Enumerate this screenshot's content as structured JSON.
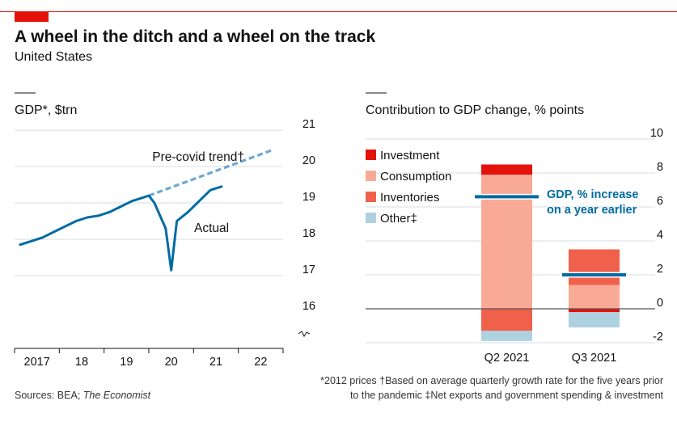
{
  "header": {
    "title": "A wheel in the ditch and a wheel on the track",
    "subtitle": "United States"
  },
  "footnotes": {
    "line1": "*2012 prices †Based on average quarterly growth rate for the five years prior",
    "line2": "to the pandemic ‡Net exports and government spending & investment",
    "sources_label": "Sources: BEA; ",
    "sources_italic": "The Economist"
  },
  "colors": {
    "accent": "#e3120b",
    "actual_line": "#006ba2",
    "trend_line": "#3d89c3",
    "investment": "#e3120b",
    "consumption": "#f9aa96",
    "inventories": "#f0614c",
    "other": "#aed1e0",
    "gdp_marker": "#006ba2"
  },
  "chart_data": [
    {
      "type": "line",
      "title": "GDP*, $trn",
      "y_ticks": [
        16,
        17,
        18,
        19,
        20,
        21
      ],
      "ylim": [
        16,
        21
      ],
      "y_axis_break": true,
      "x_tick_labels": [
        "2017",
        "18",
        "19",
        "20",
        "21",
        "22"
      ],
      "x_tick_values": [
        2017,
        2018,
        2019,
        2020,
        2021,
        2022
      ],
      "xlim": [
        2016.5,
        2022.5
      ],
      "grid": true,
      "series": [
        {
          "name": "Actual",
          "style": "solid",
          "points": [
            [
              2016.625,
              17.85
            ],
            [
              2016.875,
              17.95
            ],
            [
              2017.125,
              18.05
            ],
            [
              2017.375,
              18.2
            ],
            [
              2017.625,
              18.35
            ],
            [
              2017.875,
              18.5
            ],
            [
              2018.125,
              18.6
            ],
            [
              2018.375,
              18.65
            ],
            [
              2018.625,
              18.75
            ],
            [
              2018.875,
              18.9
            ],
            [
              2019.125,
              19.05
            ],
            [
              2019.375,
              19.15
            ],
            [
              2019.5,
              19.2
            ],
            [
              2019.625,
              19.0
            ],
            [
              2019.875,
              18.3
            ],
            [
              2020.0,
              17.15
            ],
            [
              2020.125,
              18.5
            ],
            [
              2020.375,
              18.75
            ],
            [
              2020.625,
              19.05
            ],
            [
              2020.875,
              19.35
            ],
            [
              2021.125,
              19.45
            ]
          ]
        },
        {
          "name": "Pre-covid trend†",
          "style": "dashed",
          "points": [
            [
              2019.5,
              19.2
            ],
            [
              2022.25,
              20.45
            ]
          ]
        }
      ]
    },
    {
      "type": "bar",
      "stacked": true,
      "title": "Contribution to GDP change, % points",
      "categories": [
        "Q2 2021",
        "Q3 2021"
      ],
      "y_ticks": [
        -2,
        0,
        2,
        4,
        6,
        8,
        10
      ],
      "ylim": [
        -2.5,
        10
      ],
      "legend": [
        "Investment",
        "Consumption",
        "Inventories",
        "Other‡"
      ],
      "legend_position": "top-left",
      "series": [
        {
          "name": "Investment",
          "values": [
            0.6,
            -0.2
          ]
        },
        {
          "name": "Consumption",
          "values": [
            7.9,
            1.4
          ]
        },
        {
          "name": "Inventories",
          "values": [
            -1.3,
            2.1
          ]
        },
        {
          "name": "Other‡",
          "values": [
            -0.6,
            -0.9
          ]
        }
      ],
      "markers": {
        "name": "GDP, % increase on a year earlier",
        "values": [
          6.6,
          2.0
        ]
      }
    }
  ]
}
